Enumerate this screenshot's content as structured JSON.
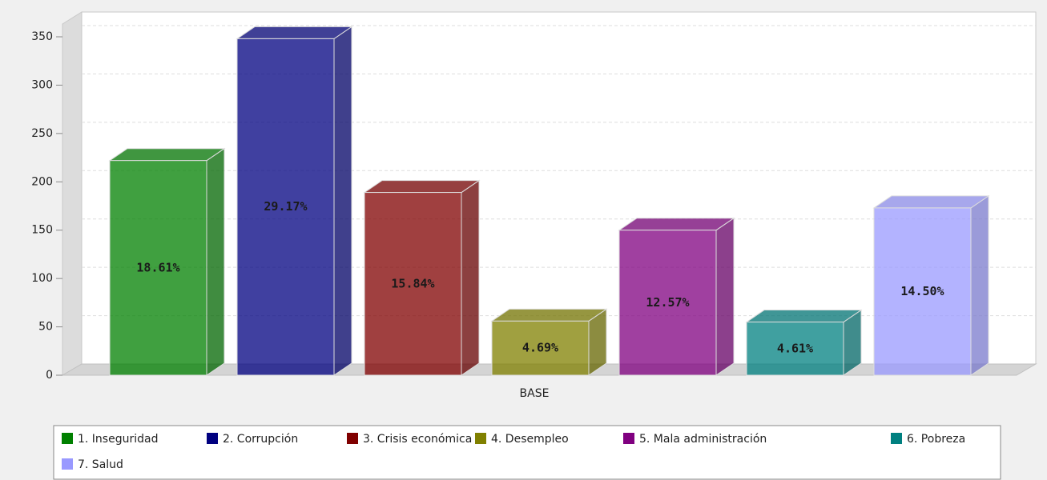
{
  "chart_data": {
    "type": "bar3d",
    "categories": [
      "BASE"
    ],
    "series": [
      {
        "name": "1. Inseguridad",
        "color": "#008000",
        "values": [
          222
        ],
        "value_labels": [
          "18.61%"
        ]
      },
      {
        "name": "2. Corrupción",
        "color": "#000080",
        "values": [
          348
        ],
        "value_labels": [
          "29.17%"
        ]
      },
      {
        "name": "3. Crisis económica",
        "color": "#800000",
        "values": [
          189
        ],
        "value_labels": [
          "15.84%"
        ]
      },
      {
        "name": "4. Desempleo",
        "color": "#808000",
        "values": [
          56
        ],
        "value_labels": [
          "4.69%"
        ]
      },
      {
        "name": "5. Mala administración",
        "color": "#800080",
        "values": [
          150
        ],
        "value_labels": [
          "12.57%"
        ]
      },
      {
        "name": "6. Pobreza",
        "color": "#008080",
        "values": [
          55
        ],
        "value_labels": [
          "4.61%"
        ]
      },
      {
        "name": "7. Salud",
        "color": "#9999ff",
        "values": [
          173
        ],
        "value_labels": [
          "14.50%"
        ]
      }
    ],
    "ylim": [
      0,
      350
    ],
    "yticks": [
      0,
      50,
      100,
      150,
      200,
      250,
      300,
      350
    ],
    "grid": true,
    "legend": "bottom"
  }
}
